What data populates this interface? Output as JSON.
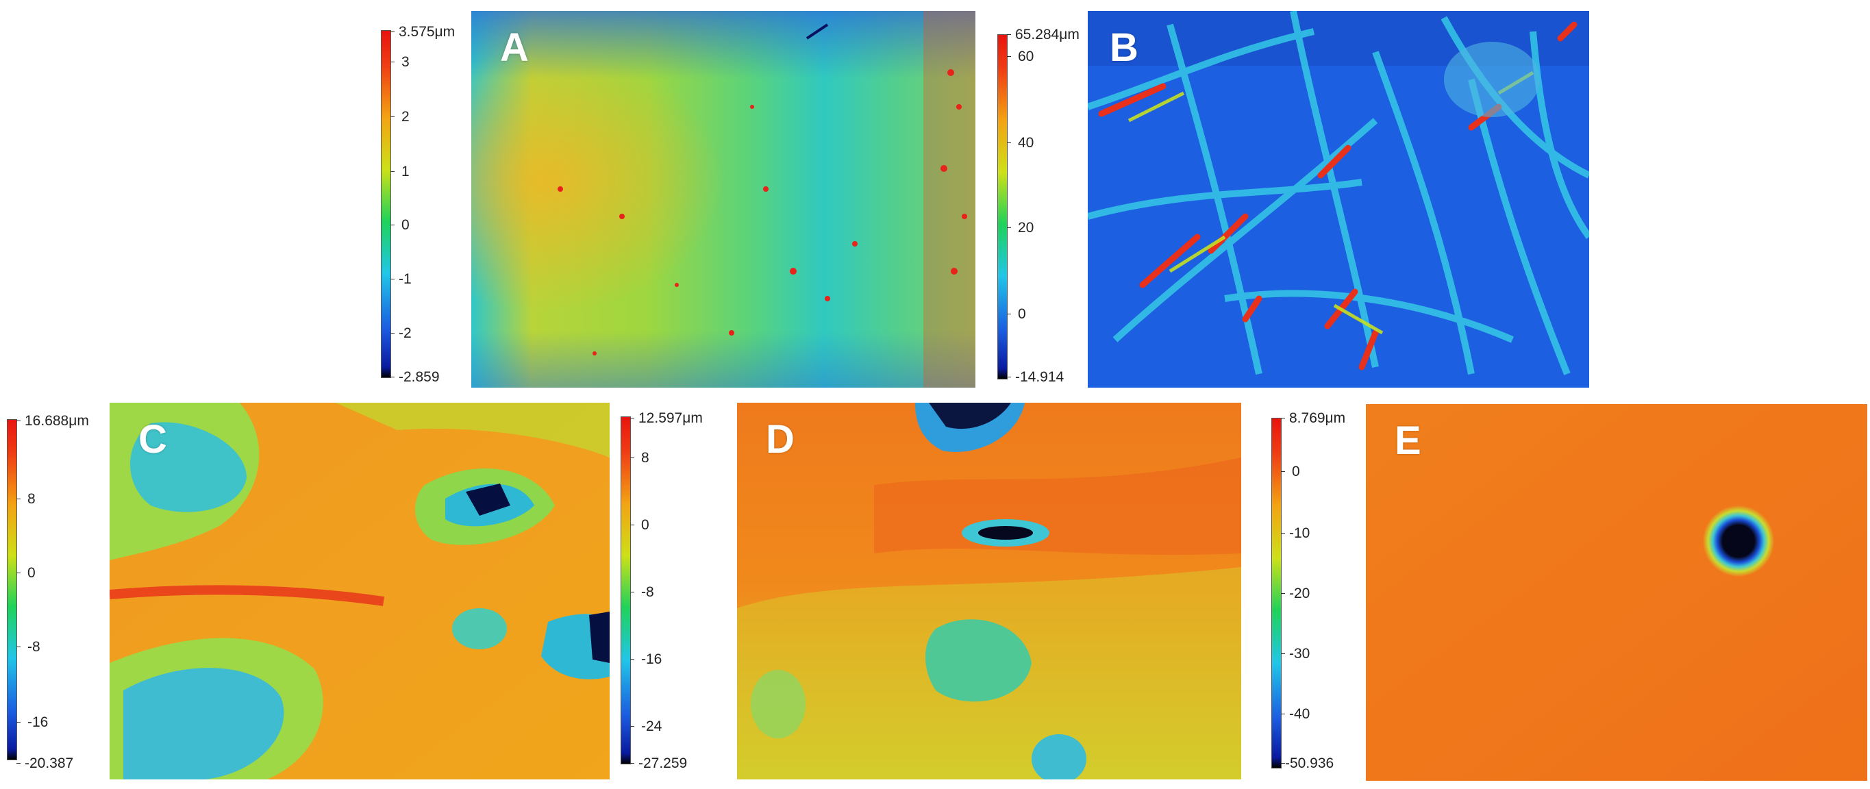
{
  "panels": [
    {
      "letter": "A",
      "max_label": "3.575μm",
      "ticks": [
        "3",
        "2",
        "1",
        "0",
        "-1",
        "-2"
      ],
      "min_label": "-2.859"
    },
    {
      "letter": "B",
      "max_label": "65.284μm",
      "ticks": [
        "60",
        "40",
        "20",
        "0"
      ],
      "min_label": "-14.914"
    },
    {
      "letter": "C",
      "max_label": "16.688μm",
      "ticks": [
        "8",
        "0",
        "-8",
        "-16"
      ],
      "min_label": "-20.387"
    },
    {
      "letter": "D",
      "max_label": "12.597μm",
      "ticks": [
        "8",
        "0",
        "-8",
        "-16",
        "-24"
      ],
      "min_label": "-27.259"
    },
    {
      "letter": "E",
      "max_label": "8.769μm",
      "ticks": [
        "0",
        "-10",
        "-20",
        "-30",
        "-40"
      ],
      "min_label": "-50.936"
    }
  ],
  "colormap": [
    "#000000",
    "#0a1aa0",
    "#1b5ce0",
    "#21c6e8",
    "#1fd25a",
    "#cde018",
    "#f3a313",
    "#ef3d14",
    "#e8140e"
  ]
}
